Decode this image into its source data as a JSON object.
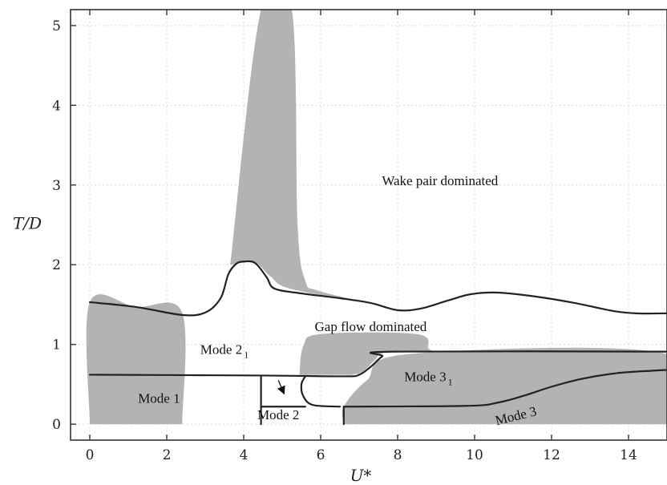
{
  "chart_data": {
    "type": "area",
    "title": "",
    "xlabel": "U*",
    "ylabel": "T/D",
    "xlim": [
      -0.5,
      15
    ],
    "ylim": [
      -0.2,
      5.2
    ],
    "xticks": [
      0,
      2,
      4,
      6,
      8,
      10,
      12,
      14
    ],
    "yticks": [
      0,
      1,
      2,
      3,
      4,
      5
    ],
    "grid": true,
    "shaded_regions": [
      {
        "points": [
          [
            0,
            0
          ],
          [
            0,
            1.53
          ],
          [
            1.2,
            1.47
          ],
          [
            2.4,
            1.4
          ],
          [
            2.4,
            0
          ]
        ]
      },
      {
        "points": [
          [
            3.65,
            2.0
          ],
          [
            4.45,
            5.2
          ],
          [
            5.25,
            5.2
          ],
          [
            5.4,
            2.5
          ],
          [
            5.6,
            1.8
          ],
          [
            5.9,
            1.68
          ],
          [
            7.0,
            1.54
          ],
          [
            5.2,
            1.7
          ],
          [
            4.7,
            1.85
          ],
          [
            4.3,
            2.03
          ],
          [
            3.9,
            2.02
          ]
        ]
      },
      {
        "points": [
          [
            5.45,
            0.62
          ],
          [
            5.55,
            0.98
          ],
          [
            6.0,
            1.13
          ],
          [
            8.5,
            1.13
          ],
          [
            8.8,
            0.95
          ],
          [
            8.9,
            0.9
          ],
          [
            7.7,
            0.9
          ],
          [
            7.4,
            0.8
          ],
          [
            7.1,
            0.66
          ],
          [
            6.8,
            0.62
          ]
        ]
      },
      {
        "points": [
          [
            6.6,
            0
          ],
          [
            6.6,
            0.22
          ],
          [
            7.2,
            0.55
          ],
          [
            8.3,
            0.88
          ],
          [
            15,
            0.88
          ],
          [
            15,
            0
          ]
        ]
      }
    ],
    "boundaries": [
      {
        "points": [
          [
            0,
            1.53
          ],
          [
            1.2,
            1.47
          ],
          [
            2.4,
            1.37
          ],
          [
            3.0,
            1.4
          ],
          [
            3.4,
            1.58
          ],
          [
            3.6,
            1.88
          ],
          [
            3.8,
            2.01
          ],
          [
            4.0,
            2.04
          ],
          [
            4.3,
            2.02
          ],
          [
            4.6,
            1.84
          ],
          [
            4.8,
            1.7
          ],
          [
            5.5,
            1.64
          ],
          [
            6.5,
            1.58
          ],
          [
            7.3,
            1.52
          ],
          [
            8.0,
            1.43
          ],
          [
            8.6,
            1.45
          ],
          [
            9.3,
            1.55
          ],
          [
            9.9,
            1.63
          ],
          [
            10.6,
            1.65
          ],
          [
            11.6,
            1.6
          ],
          [
            12.6,
            1.52
          ],
          [
            13.6,
            1.42
          ],
          [
            14.2,
            1.39
          ],
          [
            15,
            1.39
          ]
        ]
      },
      {
        "points": [
          [
            0,
            0.62
          ],
          [
            4.5,
            0.61
          ],
          [
            6.6,
            0.6
          ],
          [
            7.0,
            0.62
          ],
          [
            7.3,
            0.72
          ],
          [
            7.6,
            0.85
          ],
          [
            7.9,
            0.91
          ],
          [
            15,
            0.91
          ]
        ]
      },
      {
        "points": [
          [
            4.45,
            0.61
          ],
          [
            4.45,
            0
          ]
        ]
      },
      {
        "points": [
          [
            4.45,
            0.22
          ],
          [
            5.6,
            0.22
          ]
        ]
      },
      {
        "points": [
          [
            5.6,
            0.6
          ],
          [
            5.5,
            0.5
          ],
          [
            5.55,
            0.35
          ],
          [
            5.8,
            0.24
          ],
          [
            6.5,
            0.22
          ]
        ]
      },
      {
        "points": [
          [
            6.6,
            0.22
          ],
          [
            6.6,
            0
          ]
        ]
      },
      {
        "points": [
          [
            6.6,
            0.22
          ],
          [
            9.8,
            0.23
          ],
          [
            10.6,
            0.27
          ],
          [
            11.3,
            0.36
          ],
          [
            12.0,
            0.47
          ],
          [
            12.8,
            0.57
          ],
          [
            13.7,
            0.64
          ],
          [
            14.6,
            0.67
          ],
          [
            15,
            0.68
          ]
        ]
      }
    ],
    "annotations": [
      {
        "text": "Wake pair dominated",
        "x": 9.1,
        "y": 3.0
      },
      {
        "text": "Gap flow dominated",
        "x": 7.3,
        "y": 1.17
      },
      {
        "text": "Mode 1",
        "x": 1.8,
        "y": 0.27
      },
      {
        "text": "Mode 2",
        "x": 4.9,
        "y": 0.06
      },
      {
        "text": "Mode 2",
        "subscript": "1",
        "x": 3.5,
        "y": 0.88
      },
      {
        "text": "Mode 3",
        "subscript": "1",
        "x": 8.8,
        "y": 0.54
      },
      {
        "text": "Mode 3",
        "x": 11.1,
        "y": 0.05,
        "rotation": -14
      }
    ],
    "arrow": {
      "from": [
        4.9,
        0.55
      ],
      "to": [
        5.05,
        0.38
      ]
    }
  }
}
